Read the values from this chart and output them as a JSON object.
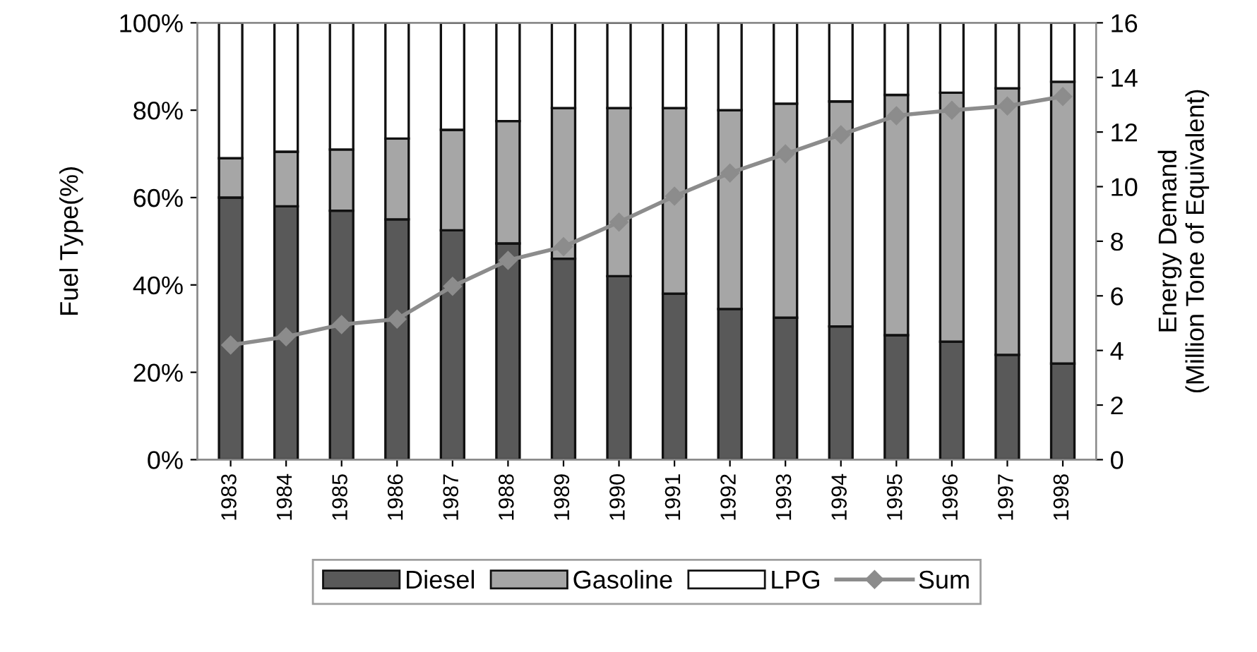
{
  "chart_data": {
    "type": "bar",
    "stacked": true,
    "ylabel": "Fuel Type(%)",
    "y2label": "Energy Demand\n(Million Tone of Equivalent)",
    "categories": [
      "1983",
      "1984",
      "1985",
      "1986",
      "1987",
      "1988",
      "1989",
      "1990",
      "1991",
      "1992",
      "1993",
      "1994",
      "1995",
      "1996",
      "1997",
      "1998"
    ],
    "series": [
      {
        "name": "Diesel",
        "color": "#595959",
        "values": [
          60,
          58,
          57,
          55,
          52.5,
          49.5,
          46,
          42,
          38,
          34.5,
          32.5,
          30.5,
          28.5,
          27,
          24,
          22
        ]
      },
      {
        "name": "Gasoline",
        "color": "#a6a6a6",
        "values": [
          9,
          12.5,
          14,
          18.5,
          23,
          28,
          34.5,
          38.5,
          42.5,
          45.5,
          49,
          51.5,
          55,
          57,
          61,
          64.5
        ]
      },
      {
        "name": "LPG",
        "color": "#ffffff",
        "values": [
          31,
          29.5,
          29,
          26.5,
          24.5,
          22.5,
          19.5,
          19.5,
          19.5,
          20,
          18.5,
          18,
          16.5,
          16,
          15,
          13.5
        ]
      },
      {
        "name": "Sum",
        "type": "line",
        "axis": "y2",
        "color": "#8c8c8c",
        "marker": "diamond",
        "values": [
          4.2,
          4.5,
          4.95,
          5.15,
          6.35,
          7.3,
          7.8,
          8.7,
          9.65,
          10.5,
          11.2,
          11.9,
          12.6,
          12.8,
          12.95,
          13.3
        ]
      }
    ],
    "ylim": [
      0,
      100
    ],
    "yticks": [
      {
        "value": 0,
        "label": "0%"
      },
      {
        "value": 20,
        "label": "20%"
      },
      {
        "value": 40,
        "label": "40%"
      },
      {
        "value": 60,
        "label": "60%"
      },
      {
        "value": 80,
        "label": "80%"
      },
      {
        "value": 100,
        "label": "100%"
      }
    ],
    "y2lim": [
      0,
      16
    ],
    "y2ticks": [
      0,
      2,
      4,
      6,
      8,
      10,
      12,
      14,
      16
    ],
    "grid": false,
    "legend": "bottom"
  }
}
